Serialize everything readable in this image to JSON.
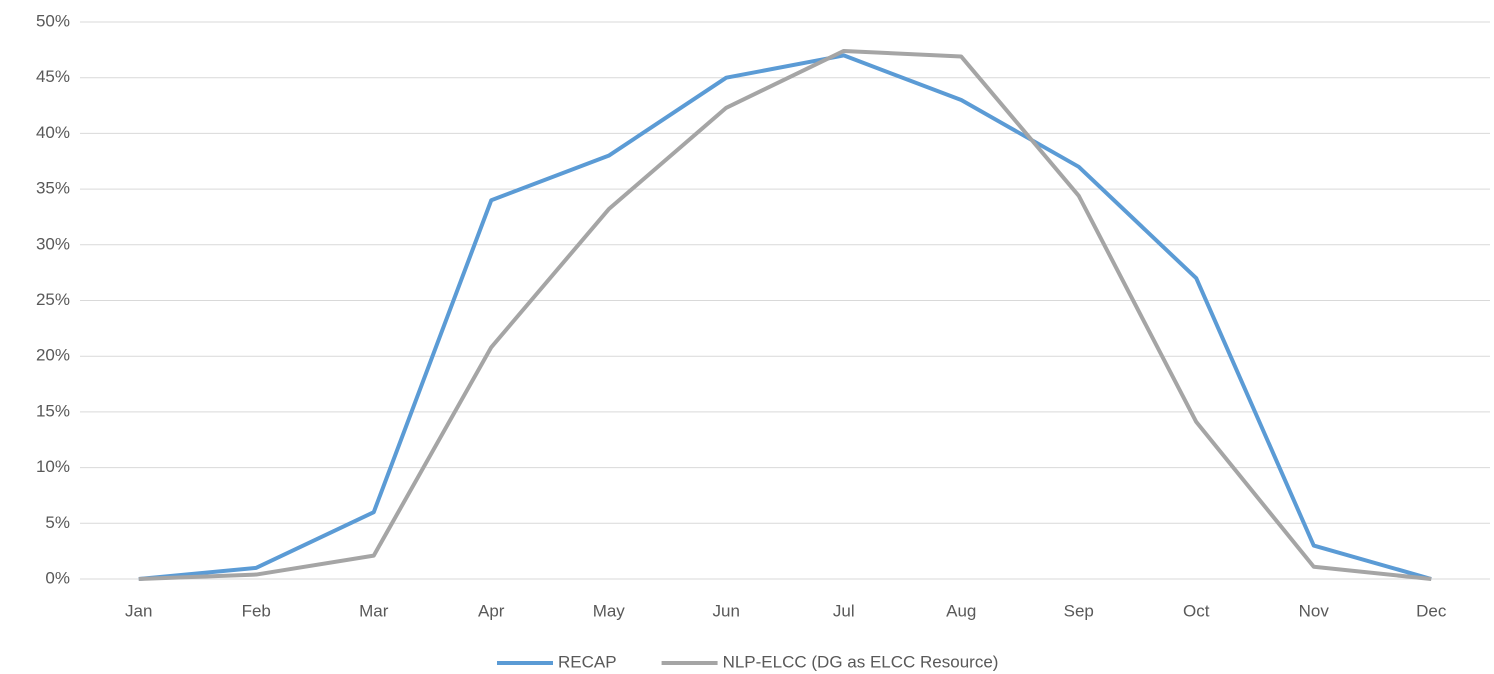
{
  "chart_data": {
    "type": "line",
    "categories": [
      "Jan",
      "Feb",
      "Mar",
      "Apr",
      "May",
      "Jun",
      "Jul",
      "Aug",
      "Sep",
      "Oct",
      "Nov",
      "Dec"
    ],
    "series": [
      {
        "name": "RECAP",
        "color": "#5b9bd5",
        "values": [
          0,
          1,
          6,
          34,
          38,
          45,
          47,
          43,
          37,
          27,
          3,
          0
        ]
      },
      {
        "name": "NLP-ELCC (DG as ELCC Resource)",
        "color": "#a5a5a5",
        "values": [
          0,
          0.4,
          2.1,
          20.8,
          33.2,
          42.3,
          47.4,
          46.9,
          34.4,
          14.1,
          1.1,
          0
        ]
      }
    ],
    "ylim": [
      0,
      50
    ],
    "yticks": [
      {
        "value": 0,
        "label": "0%"
      },
      {
        "value": 5,
        "label": "5%"
      },
      {
        "value": 10,
        "label": "10%"
      },
      {
        "value": 15,
        "label": "15%"
      },
      {
        "value": 20,
        "label": "20%"
      },
      {
        "value": 25,
        "label": "25%"
      },
      {
        "value": 30,
        "label": "30%"
      },
      {
        "value": 35,
        "label": "35%"
      },
      {
        "value": 40,
        "label": "40%"
      },
      {
        "value": 45,
        "label": "45%"
      },
      {
        "value": 50,
        "label": "50%"
      }
    ],
    "grid": true,
    "legend": "bottom"
  }
}
